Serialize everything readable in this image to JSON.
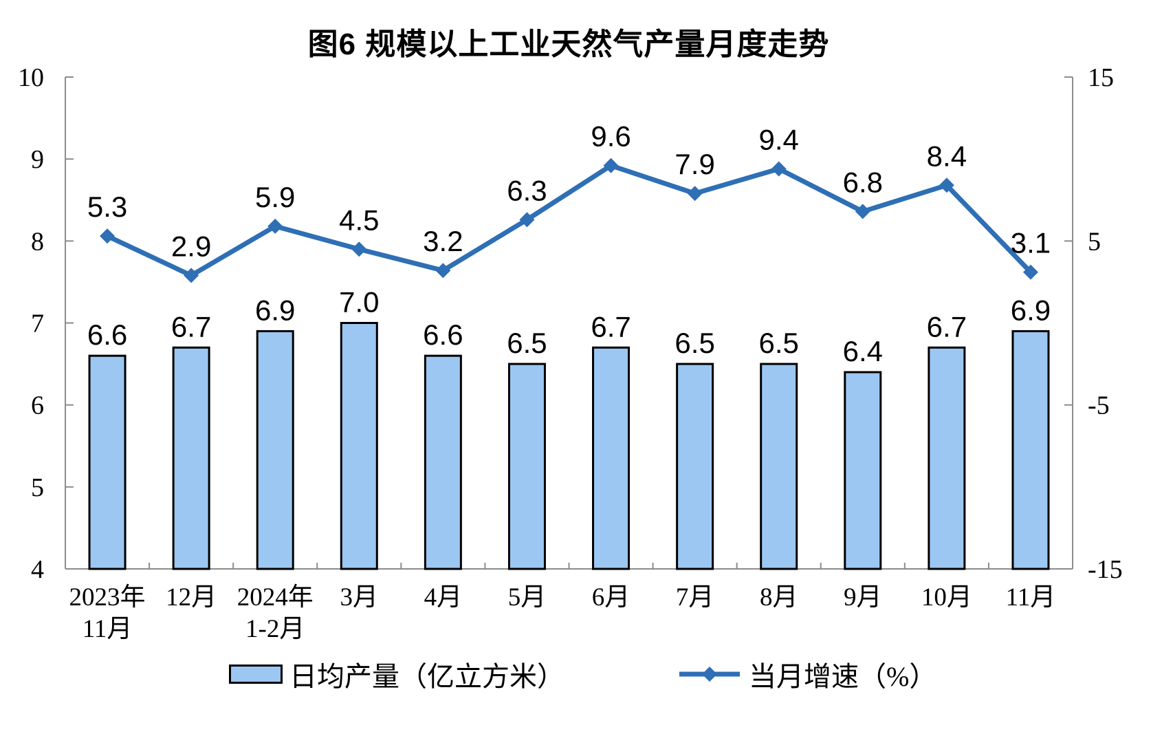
{
  "chart_data": {
    "type": "combo_bar_line",
    "title": "图6 规模以上工业天然气产量月度走势",
    "categories": [
      {
        "line1": "2023年",
        "line2": "11月"
      },
      {
        "line1": "12月",
        "line2": ""
      },
      {
        "line1": "2024年",
        "line2": "1-2月"
      },
      {
        "line1": "3月",
        "line2": ""
      },
      {
        "line1": "4月",
        "line2": ""
      },
      {
        "line1": "5月",
        "line2": ""
      },
      {
        "line1": "6月",
        "line2": ""
      },
      {
        "line1": "7月",
        "line2": ""
      },
      {
        "line1": "8月",
        "line2": ""
      },
      {
        "line1": "9月",
        "line2": ""
      },
      {
        "line1": "10月",
        "line2": ""
      },
      {
        "line1": "11月",
        "line2": ""
      }
    ],
    "series": [
      {
        "name": "日均产量（亿立方米）",
        "type": "bar",
        "axis": "left",
        "values": [
          6.6,
          6.7,
          6.9,
          7.0,
          6.6,
          6.5,
          6.7,
          6.5,
          6.5,
          6.4,
          6.7,
          6.9
        ]
      },
      {
        "name": "当月增速（%）",
        "type": "line",
        "axis": "right",
        "values": [
          5.3,
          2.9,
          5.9,
          4.5,
          3.2,
          6.3,
          9.6,
          7.9,
          9.4,
          6.8,
          8.4,
          3.1
        ]
      }
    ],
    "left_axis": {
      "min": 4,
      "max": 10,
      "ticks": [
        10,
        9,
        8,
        7,
        6,
        5,
        4
      ]
    },
    "right_axis": {
      "min": -15,
      "max": 15,
      "ticks": [
        15,
        5,
        -5,
        -15
      ]
    },
    "value_label_decimals": 1,
    "grid": false,
    "legend_position": "bottom",
    "colors": {
      "bar_fill": "#9CC7F2",
      "bar_border": "#000000",
      "line": "#2E6FB5",
      "axis": "#8C8C8C",
      "text": "#000000",
      "background": "#FFFFFF"
    }
  }
}
